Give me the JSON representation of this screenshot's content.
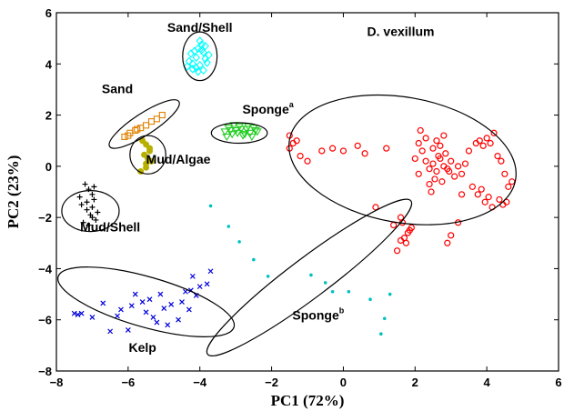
{
  "chart_data": {
    "type": "scatter",
    "title": "",
    "xlabel": "PC1 (72%)",
    "ylabel": "PC2 (23%)",
    "xlim": [
      -8,
      6
    ],
    "ylim": [
      -8,
      6
    ],
    "xticks": [
      -8,
      -6,
      -4,
      -2,
      0,
      2,
      4,
      6
    ],
    "yticks": [
      -8,
      -6,
      -4,
      -2,
      0,
      2,
      4,
      6
    ],
    "tick_labels_x": [
      "−8",
      "−6",
      "−4",
      "−2",
      "0",
      "2",
      "4",
      "6"
    ],
    "tick_labels_y": [
      "−8",
      "−6",
      "−4",
      "−2",
      "0",
      "2",
      "4",
      "6"
    ],
    "grid": false,
    "legend": "none",
    "series": [
      {
        "name": "Sand/Shell",
        "color": "#00ffff",
        "marker": "diamond",
        "label": {
          "text": "Sand/Shell",
          "sup": "",
          "x": -4.0,
          "y": 5.25
        },
        "ellipse": {
          "cx": -4.0,
          "cy": 4.3,
          "rx": 0.48,
          "ry": 0.95,
          "angle": 0
        },
        "x": [
          -4.3,
          -4.1,
          -3.9,
          -3.85,
          -4.2,
          -4.0,
          -3.8,
          -4.35,
          -4.15,
          -3.95,
          -3.75,
          -4.25,
          -4.05,
          -3.9,
          -4.1,
          -4.0,
          -3.85,
          -4.2,
          -4.05,
          -3.95
        ],
        "y": [
          4.1,
          4.25,
          4.45,
          4.7,
          3.8,
          3.95,
          4.05,
          3.9,
          4.5,
          4.75,
          4.35,
          4.4,
          4.6,
          3.75,
          3.85,
          4.9,
          4.2,
          4.0,
          3.7,
          4.55
        ]
      },
      {
        "name": "Sand",
        "color": "#e08000",
        "marker": "square",
        "label": {
          "text": "Sand",
          "sup": "",
          "x": -6.3,
          "y": 2.85
        },
        "ellipse": {
          "cx": -5.55,
          "cy": 1.65,
          "rx": 1.15,
          "ry": 0.42,
          "angle": -33
        },
        "x": [
          -6.1,
          -5.95,
          -5.8,
          -5.65,
          -5.5,
          -5.35,
          -5.2,
          -5.05,
          -6.0,
          -5.75
        ],
        "y": [
          1.15,
          1.3,
          1.4,
          1.5,
          1.6,
          1.75,
          1.85,
          2.0,
          1.2,
          1.45
        ]
      },
      {
        "name": "Sponge",
        "color": "#22cc22",
        "marker": "triangle-down",
        "label": {
          "text": "Sponge",
          "sup": "a",
          "x": -2.1,
          "y": 2.05
        },
        "ellipse": {
          "cx": -2.9,
          "cy": 1.3,
          "rx": 0.78,
          "ry": 0.4,
          "angle": 0
        },
        "x": [
          -3.3,
          -3.2,
          -3.1,
          -3.0,
          -2.9,
          -2.8,
          -2.7,
          -2.6,
          -2.5,
          -2.4,
          -3.25,
          -3.15,
          -3.05,
          -2.95,
          -2.85,
          -2.75,
          -2.65,
          -2.55,
          -2.45
        ],
        "y": [
          1.35,
          1.5,
          1.25,
          1.4,
          1.55,
          1.2,
          1.45,
          1.3,
          1.5,
          1.35,
          1.15,
          1.4,
          1.6,
          1.3,
          1.45,
          1.25,
          1.55,
          1.15,
          1.4
        ]
      },
      {
        "name": "Mud/Algae",
        "color": "#b8b000",
        "marker": "circle-filled",
        "label": {
          "text": "Mud/Algae",
          "sup": "",
          "x": -4.6,
          "y": 0.1
        },
        "ellipse": {
          "cx": -5.45,
          "cy": 0.45,
          "rx": 0.5,
          "ry": 0.75,
          "angle": 0
        },
        "x": [
          -5.6,
          -5.5,
          -5.4,
          -5.55,
          -5.45,
          -5.35,
          -5.5,
          -5.65,
          -5.4,
          -5.5
        ],
        "y": [
          1.0,
          0.85,
          0.6,
          0.45,
          0.3,
          0.2,
          -0.05,
          -0.2,
          0.7,
          0.1
        ]
      },
      {
        "name": "Mud/Shell",
        "color": "#000000",
        "marker": "plus",
        "label": {
          "text": "Mud/Shell",
          "sup": "",
          "x": -6.5,
          "y": -2.55
        },
        "ellipse": {
          "cx": -7.05,
          "cy": -1.75,
          "rx": 0.8,
          "ry": 0.8,
          "angle": 0
        },
        "x": [
          -7.2,
          -7.1,
          -7.0,
          -6.95,
          -7.3,
          -7.15,
          -7.05,
          -6.9,
          -7.25,
          -7.1,
          -7.0,
          -6.85,
          -7.35,
          -7.15,
          -7.0,
          -6.95
        ],
        "y": [
          -0.7,
          -0.9,
          -1.1,
          -1.3,
          -1.5,
          -1.7,
          -1.9,
          -2.1,
          -2.2,
          -2.3,
          -1.6,
          -1.8,
          -1.2,
          -1.4,
          -2.0,
          -0.8
        ]
      },
      {
        "name": "D. vexillum",
        "color": "#ff0000",
        "marker": "circle-open",
        "label": {
          "text": "D. vexillum",
          "sup": "",
          "x": 1.6,
          "y": 5.1
        },
        "ellipse": {
          "cx": 1.65,
          "cy": 0.25,
          "rx": 3.2,
          "ry": 2.45,
          "angle": 10
        },
        "x": [
          -1.5,
          -1.4,
          -1.3,
          -1.5,
          -1.2,
          -1.0,
          -0.6,
          -0.3,
          0.0,
          0.4,
          0.6,
          1.4,
          1.6,
          1.8,
          1.7,
          1.9,
          1.65,
          1.75,
          1.85,
          2.1,
          2.3,
          2.4,
          2.5,
          2.6,
          2.7,
          2.8,
          2.9,
          3.0,
          3.1,
          3.2,
          3.3,
          3.4,
          2.45,
          2.55,
          2.65,
          2.75,
          2.85,
          2.95,
          2.6,
          2.7,
          2.8,
          2.4,
          2.5,
          3.5,
          3.7,
          3.8,
          3.9,
          4.0,
          4.1,
          4.2,
          4.3,
          4.4,
          4.5,
          4.6,
          4.7,
          4.35,
          4.45,
          4.55,
          3.6,
          3.75,
          3.85,
          3.95,
          4.05,
          4.15,
          2.2,
          2.3,
          2.0,
          2.1,
          3.3,
          2.9,
          3.0,
          3.2,
          2.15,
          1.2,
          0.9,
          1.5,
          1.6
        ],
        "y": [
          1.2,
          0.9,
          1.0,
          0.7,
          0.4,
          0.2,
          0.6,
          0.7,
          0.6,
          0.8,
          0.5,
          -2.3,
          -2.0,
          -2.6,
          -2.8,
          -2.4,
          -2.2,
          -3.0,
          -2.5,
          -0.3,
          0.2,
          -0.1,
          0.1,
          -0.2,
          0.3,
          0.0,
          -0.1,
          0.2,
          -0.4,
          0.0,
          -0.3,
          0.1,
          -1.0,
          -0.5,
          0.4,
          -0.6,
          0.5,
          -0.2,
          1.0,
          0.8,
          1.2,
          -0.7,
          0.7,
          0.6,
          0.9,
          1.0,
          0.8,
          1.1,
          0.9,
          1.3,
          0.4,
          0.2,
          -0.3,
          -0.8,
          -0.6,
          -1.3,
          -1.5,
          -1.4,
          -0.8,
          -1.1,
          -0.9,
          -1.4,
          -1.2,
          -1.6,
          0.6,
          1.1,
          0.3,
          0.9,
          -1.1,
          -3.0,
          -2.7,
          -2.2,
          1.4,
          0.7,
          -1.6,
          -3.3,
          -2.9
        ]
      },
      {
        "name": "Kelp",
        "color": "#0000dd",
        "marker": "x",
        "label": {
          "text": "Kelp",
          "sup": "",
          "x": -5.6,
          "y": -7.25
        },
        "ellipse": {
          "cx": -5.5,
          "cy": -5.3,
          "rx": 2.55,
          "ry": 0.98,
          "angle": 16
        },
        "x": [
          -7.5,
          -7.4,
          -7.3,
          -7.0,
          -6.7,
          -6.5,
          -6.2,
          -6.0,
          -5.8,
          -5.6,
          -5.5,
          -5.4,
          -5.3,
          -5.2,
          -5.1,
          -5.0,
          -4.9,
          -4.8,
          -4.6,
          -4.4,
          -4.3,
          -4.2,
          -4.1,
          -4.0,
          -3.8,
          -3.7,
          -5.9,
          -6.3,
          -4.5,
          -4.25
        ],
        "y": [
          -5.75,
          -5.8,
          -5.75,
          -5.9,
          -5.35,
          -6.45,
          -5.6,
          -6.4,
          -5.0,
          -5.3,
          -5.7,
          -5.2,
          -5.9,
          -6.1,
          -5.0,
          -5.55,
          -6.2,
          -5.4,
          -6.0,
          -4.9,
          -5.6,
          -4.3,
          -5.05,
          -4.7,
          -4.6,
          -4.1,
          -5.45,
          -5.85,
          -5.3,
          -4.85
        ]
      },
      {
        "name": "Sponge",
        "color": "#00c0c0",
        "marker": "dot",
        "label": {
          "text": "Sponge",
          "sup": "b",
          "x": -0.7,
          "y": -6.0
        },
        "ellipse": {
          "cx": -0.95,
          "cy": -4.35,
          "rx": 3.55,
          "ry": 0.78,
          "angle": -37
        },
        "x": [
          -3.7,
          -3.2,
          -2.9,
          -2.5,
          -2.1,
          -0.9,
          -0.5,
          -0.3,
          0.15,
          0.75,
          1.15,
          1.3,
          1.05
        ],
        "y": [
          -1.55,
          -2.35,
          -2.95,
          -3.65,
          -4.3,
          -4.25,
          -4.55,
          -4.9,
          -4.9,
          -5.2,
          -5.95,
          -5.0,
          -6.55
        ]
      }
    ]
  }
}
